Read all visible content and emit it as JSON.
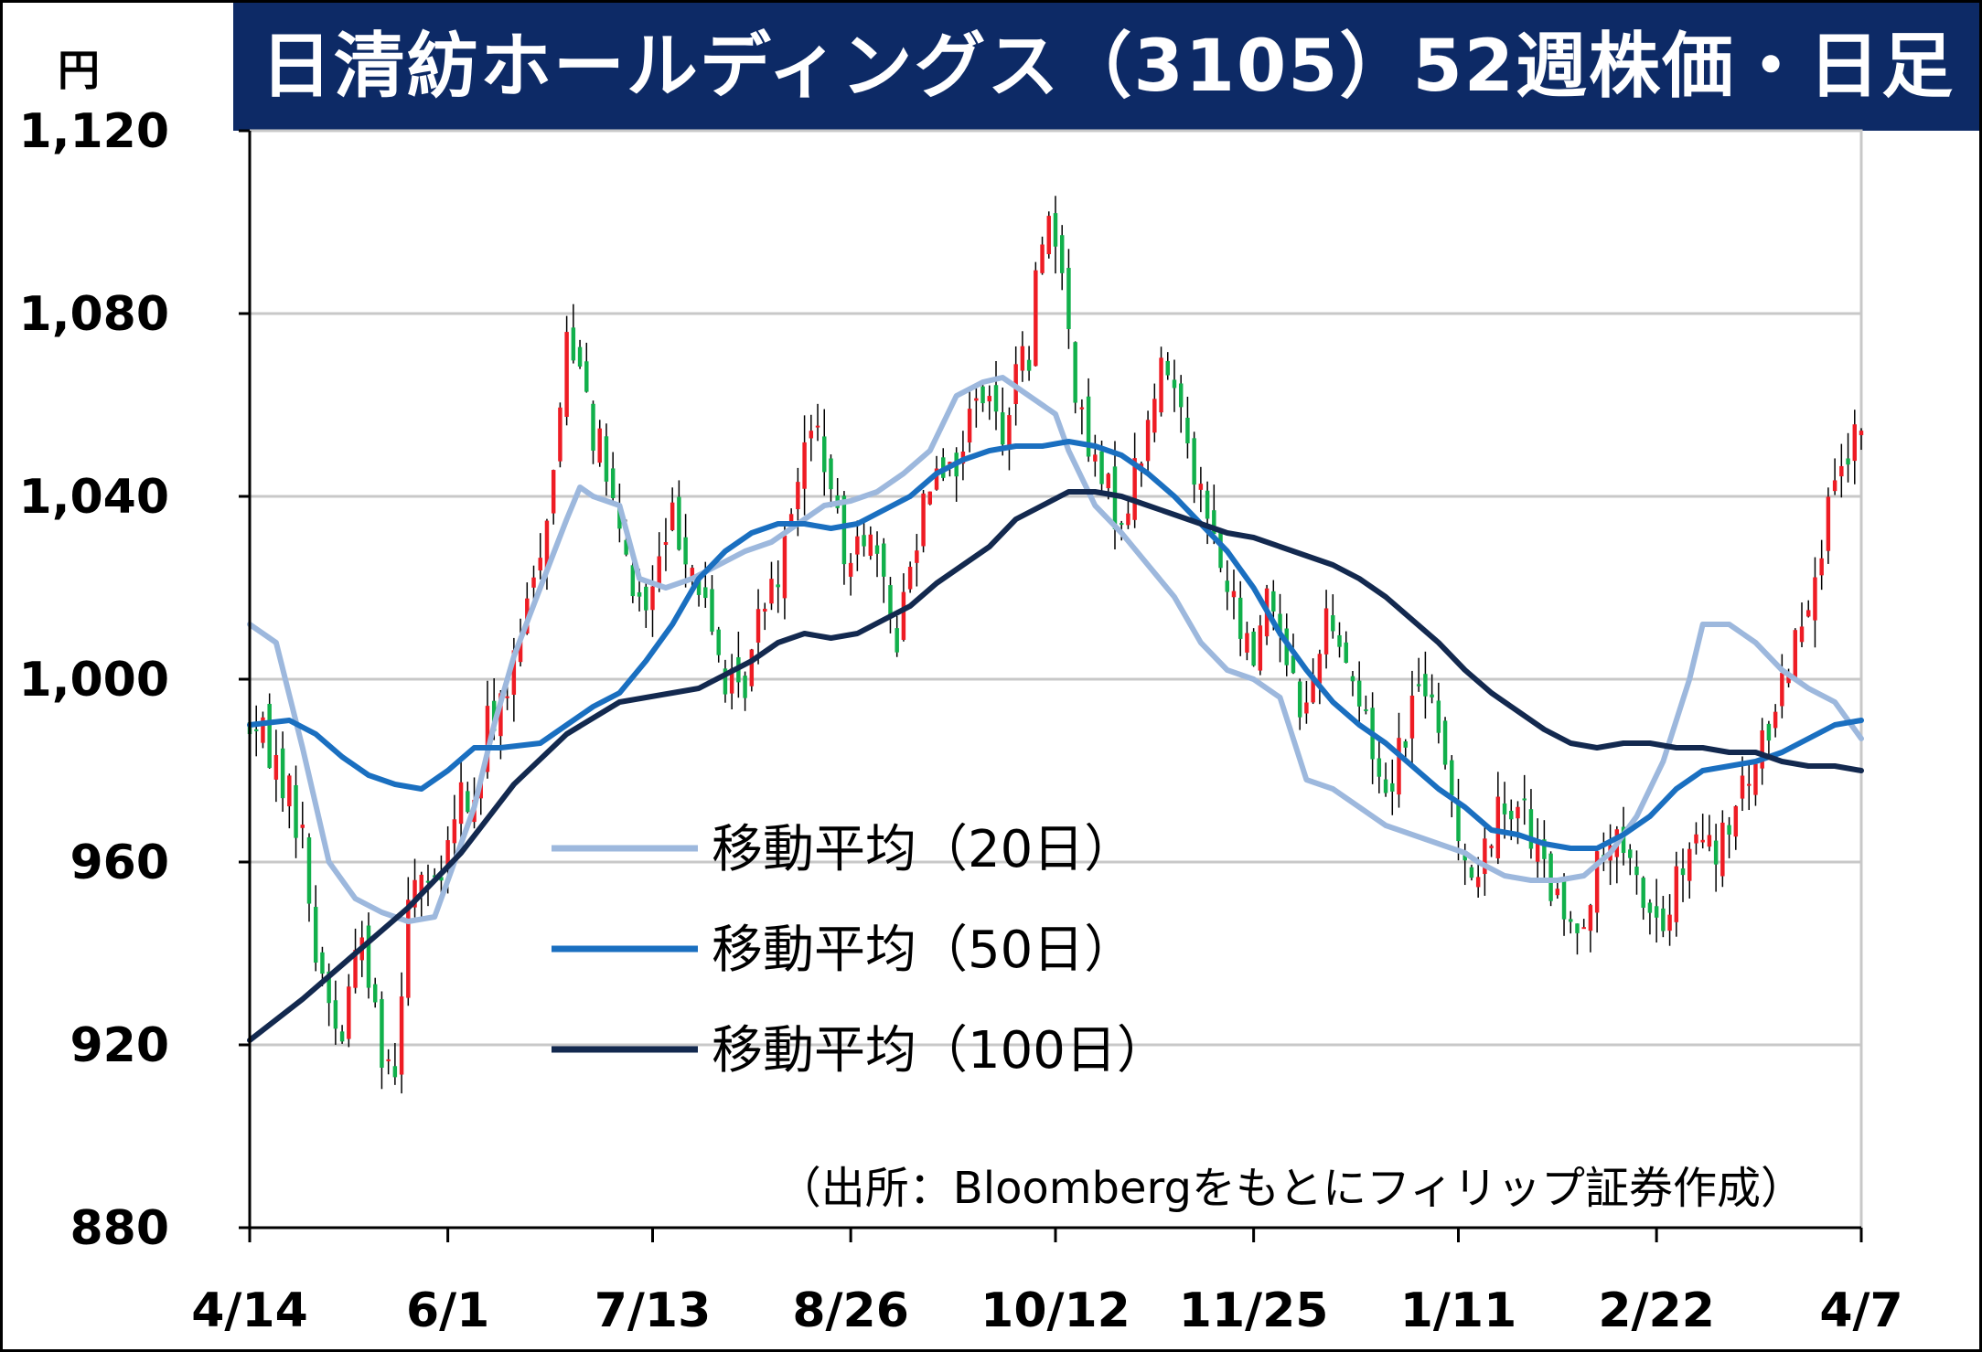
{
  "title": "日清紡ホールディングス（3105）52週株価・日足",
  "y_unit": "円",
  "source": "（出所：Bloombergをもとにフィリップ証券作成）",
  "colors": {
    "title_bg": "#0d2a66",
    "up": "#ee1c24",
    "down": "#11b04b",
    "ma20": "#9db8dd",
    "ma50": "#1a6fc0",
    "ma100": "#13294f",
    "grid": "#c8c8c8"
  },
  "chart_data": {
    "type": "candlestick",
    "title": "日清紡ホールディングス（3105）52週株価・日足",
    "ylabel": "円",
    "ylim": [
      880,
      1120
    ],
    "yticks": [
      {
        "value": 1120,
        "label": "1,120"
      },
      {
        "value": 1080,
        "label": "1,080"
      },
      {
        "value": 1040,
        "label": "1,040"
      },
      {
        "value": 1000,
        "label": "1,000"
      },
      {
        "value": 960,
        "label": "960"
      },
      {
        "value": 920,
        "label": "920"
      },
      {
        "value": 880,
        "label": "880"
      }
    ],
    "n_days": 245,
    "xticks": [
      {
        "index": 0,
        "label": "4/14"
      },
      {
        "index": 30,
        "label": "6/1"
      },
      {
        "index": 61,
        "label": "7/13"
      },
      {
        "index": 91,
        "label": "8/26"
      },
      {
        "index": 122,
        "label": "10/12"
      },
      {
        "index": 152,
        "label": "11/25"
      },
      {
        "index": 183,
        "label": "1/11"
      },
      {
        "index": 213,
        "label": "2/22"
      },
      {
        "index": 244,
        "label": "4/7"
      }
    ],
    "grid": true,
    "legend_position": "center-left",
    "series": [
      {
        "name": "移動平均（20日）",
        "color": "#9db8dd",
        "points": [
          [
            0,
            1012
          ],
          [
            4,
            1008
          ],
          [
            8,
            985
          ],
          [
            12,
            960
          ],
          [
            16,
            952
          ],
          [
            20,
            949
          ],
          [
            24,
            947
          ],
          [
            28,
            948
          ],
          [
            31,
            960
          ],
          [
            34,
            972
          ],
          [
            37,
            990
          ],
          [
            40,
            1005
          ],
          [
            44,
            1020
          ],
          [
            48,
            1035
          ],
          [
            50,
            1042
          ],
          [
            52,
            1040
          ],
          [
            56,
            1038
          ],
          [
            59,
            1022
          ],
          [
            63,
            1020
          ],
          [
            67,
            1022
          ],
          [
            71,
            1025
          ],
          [
            75,
            1028
          ],
          [
            79,
            1030
          ],
          [
            83,
            1034
          ],
          [
            87,
            1038
          ],
          [
            91,
            1039
          ],
          [
            95,
            1041
          ],
          [
            99,
            1045
          ],
          [
            103,
            1050
          ],
          [
            107,
            1062
          ],
          [
            111,
            1065
          ],
          [
            114,
            1066
          ],
          [
            118,
            1062
          ],
          [
            122,
            1058
          ],
          [
            124,
            1050
          ],
          [
            128,
            1038
          ],
          [
            132,
            1032
          ],
          [
            136,
            1025
          ],
          [
            140,
            1018
          ],
          [
            144,
            1008
          ],
          [
            148,
            1002
          ],
          [
            152,
            1000
          ],
          [
            156,
            996
          ],
          [
            160,
            978
          ],
          [
            164,
            976
          ],
          [
            168,
            972
          ],
          [
            172,
            968
          ],
          [
            176,
            966
          ],
          [
            180,
            964
          ],
          [
            184,
            962
          ],
          [
            186,
            960
          ],
          [
            190,
            957
          ],
          [
            194,
            956
          ],
          [
            198,
            956
          ],
          [
            202,
            957
          ],
          [
            206,
            962
          ],
          [
            210,
            970
          ],
          [
            214,
            982
          ],
          [
            218,
            1000
          ],
          [
            220,
            1012
          ],
          [
            224,
            1012
          ],
          [
            228,
            1008
          ],
          [
            232,
            1002
          ],
          [
            236,
            998
          ],
          [
            240,
            995
          ],
          [
            244,
            987
          ]
        ]
      },
      {
        "name": "移動平均（50日）",
        "color": "#1a6fc0",
        "points": [
          [
            0,
            990
          ],
          [
            6,
            991
          ],
          [
            10,
            988
          ],
          [
            14,
            983
          ],
          [
            18,
            979
          ],
          [
            22,
            977
          ],
          [
            26,
            976
          ],
          [
            30,
            980
          ],
          [
            34,
            985
          ],
          [
            38,
            985
          ],
          [
            44,
            986
          ],
          [
            48,
            990
          ],
          [
            52,
            994
          ],
          [
            56,
            997
          ],
          [
            60,
            1004
          ],
          [
            64,
            1012
          ],
          [
            68,
            1022
          ],
          [
            72,
            1028
          ],
          [
            76,
            1032
          ],
          [
            80,
            1034
          ],
          [
            84,
            1034
          ],
          [
            88,
            1033
          ],
          [
            92,
            1034
          ],
          [
            96,
            1037
          ],
          [
            100,
            1040
          ],
          [
            104,
            1045
          ],
          [
            108,
            1048
          ],
          [
            112,
            1050
          ],
          [
            116,
            1051
          ],
          [
            120,
            1051
          ],
          [
            124,
            1052
          ],
          [
            128,
            1051
          ],
          [
            132,
            1049
          ],
          [
            136,
            1045
          ],
          [
            140,
            1040
          ],
          [
            144,
            1034
          ],
          [
            148,
            1028
          ],
          [
            152,
            1020
          ],
          [
            156,
            1010
          ],
          [
            160,
            1002
          ],
          [
            164,
            995
          ],
          [
            168,
            990
          ],
          [
            172,
            986
          ],
          [
            176,
            981
          ],
          [
            180,
            976
          ],
          [
            184,
            972
          ],
          [
            188,
            967
          ],
          [
            192,
            966
          ],
          [
            196,
            964
          ],
          [
            200,
            963
          ],
          [
            204,
            963
          ],
          [
            208,
            966
          ],
          [
            212,
            970
          ],
          [
            216,
            976
          ],
          [
            220,
            980
          ],
          [
            224,
            981
          ],
          [
            228,
            982
          ],
          [
            232,
            984
          ],
          [
            236,
            987
          ],
          [
            240,
            990
          ],
          [
            244,
            991
          ]
        ]
      },
      {
        "name": "移動平均（100日）",
        "color": "#13294f",
        "points": [
          [
            0,
            921
          ],
          [
            8,
            930
          ],
          [
            16,
            940
          ],
          [
            24,
            950
          ],
          [
            32,
            962
          ],
          [
            40,
            977
          ],
          [
            48,
            988
          ],
          [
            56,
            995
          ],
          [
            60,
            996
          ],
          [
            64,
            997
          ],
          [
            68,
            998
          ],
          [
            72,
            1001
          ],
          [
            76,
            1004
          ],
          [
            80,
            1008
          ],
          [
            84,
            1010
          ],
          [
            88,
            1009
          ],
          [
            92,
            1010
          ],
          [
            96,
            1013
          ],
          [
            100,
            1016
          ],
          [
            104,
            1021
          ],
          [
            108,
            1025
          ],
          [
            112,
            1029
          ],
          [
            116,
            1035
          ],
          [
            120,
            1038
          ],
          [
            124,
            1041
          ],
          [
            128,
            1041
          ],
          [
            132,
            1040
          ],
          [
            136,
            1038
          ],
          [
            140,
            1036
          ],
          [
            144,
            1034
          ],
          [
            148,
            1032
          ],
          [
            152,
            1031
          ],
          [
            156,
            1029
          ],
          [
            160,
            1027
          ],
          [
            164,
            1025
          ],
          [
            168,
            1022
          ],
          [
            172,
            1018
          ],
          [
            176,
            1013
          ],
          [
            180,
            1008
          ],
          [
            184,
            1002
          ],
          [
            188,
            997
          ],
          [
            192,
            993
          ],
          [
            196,
            989
          ],
          [
            200,
            986
          ],
          [
            204,
            985
          ],
          [
            208,
            986
          ],
          [
            212,
            986
          ],
          [
            216,
            985
          ],
          [
            220,
            985
          ],
          [
            224,
            984
          ],
          [
            228,
            984
          ],
          [
            232,
            982
          ],
          [
            236,
            981
          ],
          [
            240,
            981
          ],
          [
            244,
            980
          ]
        ]
      }
    ],
    "price_path": [
      [
        0,
        990
      ],
      [
        3,
        985
      ],
      [
        6,
        975
      ],
      [
        8,
        965
      ],
      [
        10,
        940
      ],
      [
        12,
        930
      ],
      [
        14,
        920
      ],
      [
        16,
        945
      ],
      [
        18,
        935
      ],
      [
        20,
        920
      ],
      [
        22,
        915
      ],
      [
        24,
        955
      ],
      [
        26,
        958
      ],
      [
        28,
        952
      ],
      [
        30,
        962
      ],
      [
        32,
        975
      ],
      [
        34,
        972
      ],
      [
        36,
        990
      ],
      [
        38,
        995
      ],
      [
        40,
        1002
      ],
      [
        42,
        1015
      ],
      [
        44,
        1030
      ],
      [
        46,
        1045
      ],
      [
        48,
        1075
      ],
      [
        50,
        1072
      ],
      [
        52,
        1055
      ],
      [
        54,
        1045
      ],
      [
        56,
        1030
      ],
      [
        58,
        1020
      ],
      [
        60,
        1015
      ],
      [
        62,
        1025
      ],
      [
        64,
        1035
      ],
      [
        66,
        1030
      ],
      [
        68,
        1020
      ],
      [
        70,
        1010
      ],
      [
        72,
        1000
      ],
      [
        74,
        995
      ],
      [
        76,
        1005
      ],
      [
        78,
        1020
      ],
      [
        80,
        1025
      ],
      [
        82,
        1040
      ],
      [
        84,
        1050
      ],
      [
        86,
        1055
      ],
      [
        88,
        1040
      ],
      [
        90,
        1025
      ],
      [
        92,
        1035
      ],
      [
        94,
        1030
      ],
      [
        96,
        1018
      ],
      [
        98,
        1010
      ],
      [
        100,
        1025
      ],
      [
        102,
        1040
      ],
      [
        104,
        1050
      ],
      [
        106,
        1045
      ],
      [
        108,
        1050
      ],
      [
        110,
        1065
      ],
      [
        112,
        1060
      ],
      [
        114,
        1055
      ],
      [
        116,
        1068
      ],
      [
        118,
        1070
      ],
      [
        120,
        1100
      ],
      [
        122,
        1098
      ],
      [
        124,
        1075
      ],
      [
        126,
        1055
      ],
      [
        128,
        1045
      ],
      [
        130,
        1040
      ],
      [
        132,
        1035
      ],
      [
        134,
        1045
      ],
      [
        136,
        1055
      ],
      [
        138,
        1068
      ],
      [
        140,
        1065
      ],
      [
        142,
        1055
      ],
      [
        144,
        1040
      ],
      [
        146,
        1030
      ],
      [
        148,
        1020
      ],
      [
        150,
        1010
      ],
      [
        152,
        1005
      ],
      [
        154,
        1020
      ],
      [
        156,
        1012
      ],
      [
        158,
        1000
      ],
      [
        160,
        992
      ],
      [
        162,
        1010
      ],
      [
        164,
        1015
      ],
      [
        166,
        1005
      ],
      [
        168,
        995
      ],
      [
        170,
        985
      ],
      [
        172,
        975
      ],
      [
        174,
        985
      ],
      [
        176,
        995
      ],
      [
        178,
        1000
      ],
      [
        180,
        985
      ],
      [
        182,
        975
      ],
      [
        184,
        962
      ],
      [
        186,
        955
      ],
      [
        188,
        968
      ],
      [
        190,
        972
      ],
      [
        192,
        975
      ],
      [
        194,
        965
      ],
      [
        196,
        958
      ],
      [
        198,
        950
      ],
      [
        200,
        945
      ],
      [
        202,
        950
      ],
      [
        204,
        958
      ],
      [
        206,
        965
      ],
      [
        208,
        960
      ],
      [
        210,
        955
      ],
      [
        212,
        950
      ],
      [
        214,
        945
      ],
      [
        216,
        955
      ],
      [
        218,
        960
      ],
      [
        220,
        965
      ],
      [
        222,
        960
      ],
      [
        224,
        968
      ],
      [
        226,
        975
      ],
      [
        228,
        980
      ],
      [
        230,
        990
      ],
      [
        232,
        1000
      ],
      [
        234,
        1010
      ],
      [
        236,
        1020
      ],
      [
        238,
        1030
      ],
      [
        240,
        1040
      ],
      [
        242,
        1048
      ],
      [
        244,
        1055
      ]
    ]
  }
}
